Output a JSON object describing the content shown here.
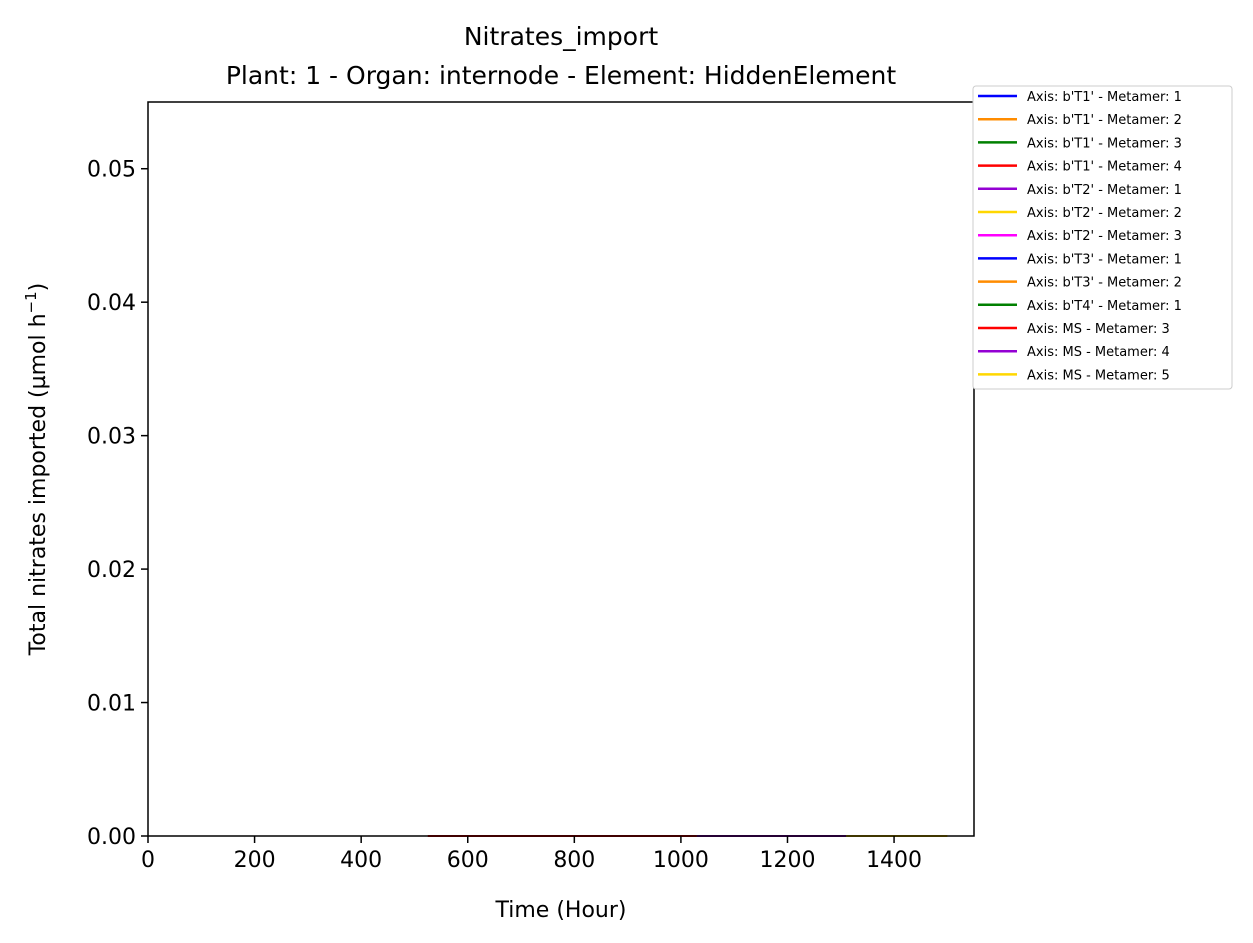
{
  "chart_data": {
    "type": "line",
    "title": "Nitrates_import",
    "subtitle": "Plant: 1 - Organ: internode - Element: HiddenElement",
    "xlabel": "Time (Hour)",
    "ylabel_main": "Total nitrates imported (µmol h",
    "ylabel_sup": "−1",
    "ylabel_close": ")",
    "xlim": [
      0,
      1550
    ],
    "ylim": [
      0,
      0.055
    ],
    "x_ticks": [
      0,
      200,
      400,
      600,
      800,
      1000,
      1200,
      1400
    ],
    "x_tick_labels": [
      "0",
      "200",
      "400",
      "600",
      "800",
      "1000",
      "1200",
      "1400"
    ],
    "y_ticks": [
      0,
      0.01,
      0.02,
      0.03,
      0.04,
      0.05
    ],
    "y_tick_labels": [
      "0.00",
      "0.01",
      "0.02",
      "0.03",
      "0.04",
      "0.05"
    ],
    "legend_position": "outside-top-right",
    "grid": false,
    "series": [
      {
        "name": "Axis: b'T1' - Metamer: 1",
        "color": "#0000ff",
        "x": [],
        "y": []
      },
      {
        "name": "Axis: b'T1' - Metamer: 2",
        "color": "#ff8c00",
        "x": [],
        "y": []
      },
      {
        "name": "Axis: b'T1' - Metamer: 3",
        "color": "#008000",
        "x": [],
        "y": []
      },
      {
        "name": "Axis: b'T1' - Metamer: 4",
        "color": "#ff0000",
        "x": [],
        "y": []
      },
      {
        "name": "Axis: b'T2' - Metamer: 1",
        "color": "#9400d3",
        "x": [],
        "y": []
      },
      {
        "name": "Axis: b'T2' - Metamer: 2",
        "color": "#ffd700",
        "x": [],
        "y": []
      },
      {
        "name": "Axis: b'T2' - Metamer: 3",
        "color": "#ff00ff",
        "x": [],
        "y": []
      },
      {
        "name": "Axis: b'T3' - Metamer: 1",
        "color": "#0000ff",
        "x": [],
        "y": []
      },
      {
        "name": "Axis: b'T3' - Metamer: 2",
        "color": "#ff8c00",
        "x": [],
        "y": []
      },
      {
        "name": "Axis: b'T4' - Metamer: 1",
        "color": "#008000",
        "x": [],
        "y": []
      },
      {
        "name": "Axis: MS - Metamer: 3",
        "color": "#ff0000",
        "x": [
          525,
          1030
        ],
        "y": [
          0,
          0
        ]
      },
      {
        "name": "Axis: MS - Metamer: 4",
        "color": "#9400d3",
        "x": [
          1030,
          1310
        ],
        "y": [
          0,
          0
        ]
      },
      {
        "name": "Axis: MS - Metamer: 5",
        "color": "#ffd700",
        "x": [
          1310,
          1500
        ],
        "y": [
          0,
          0
        ]
      }
    ]
  }
}
